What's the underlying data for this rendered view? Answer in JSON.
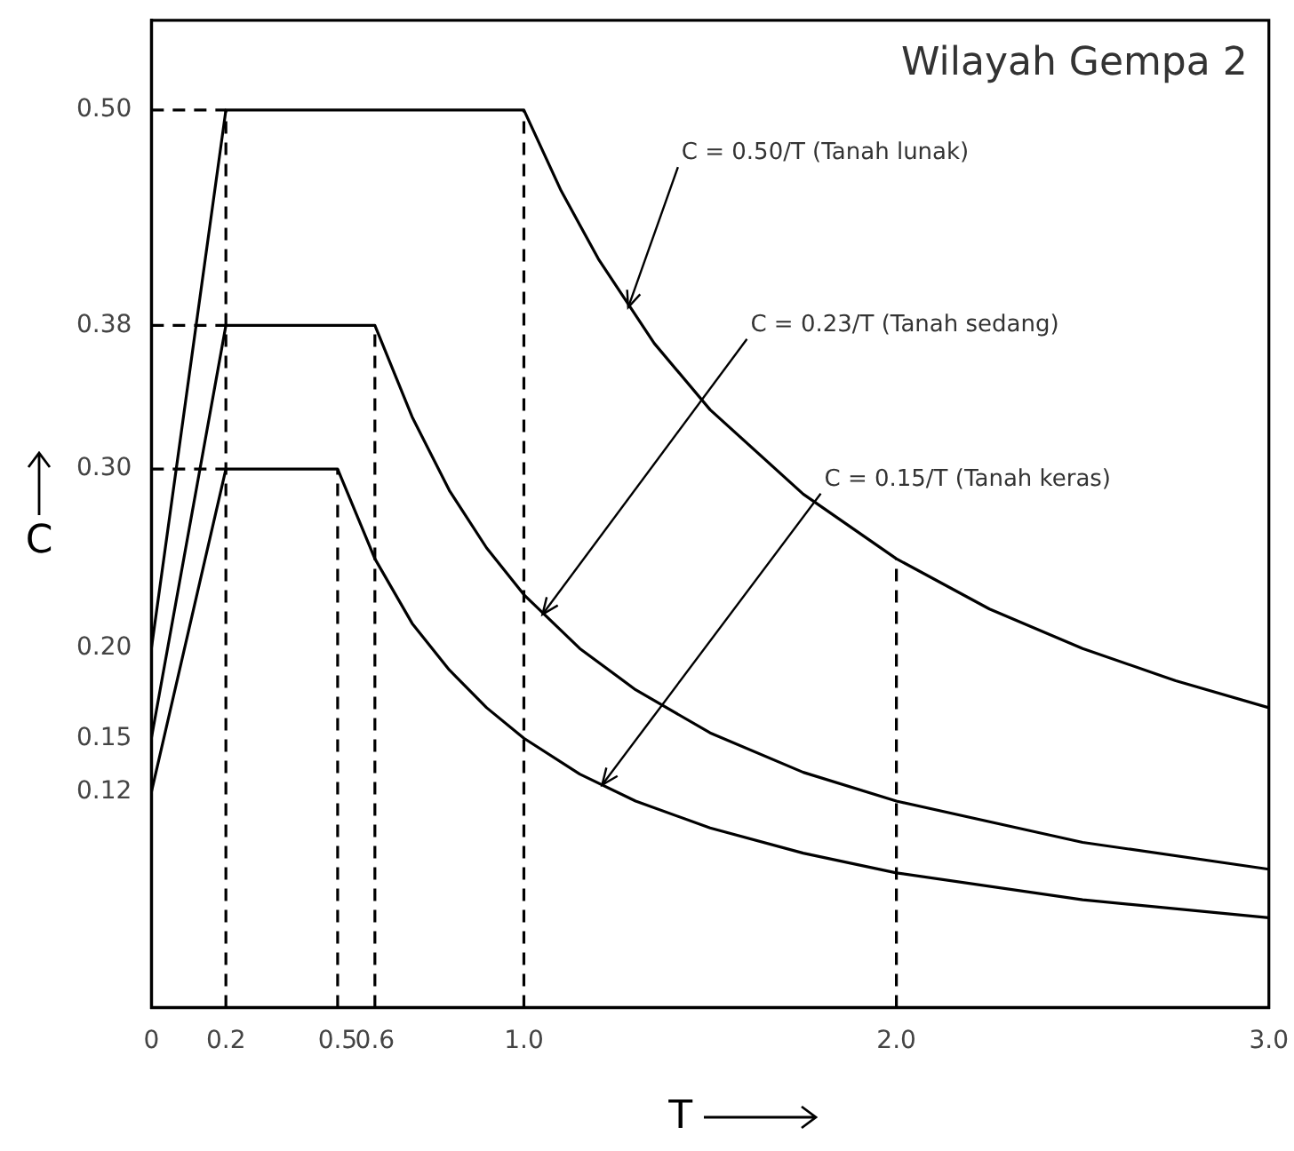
{
  "chart_data": {
    "type": "line",
    "xlabel": "T",
    "ylabel": "C",
    "xlim": [
      0,
      3
    ],
    "xticks": [
      0,
      0.2,
      0.5,
      0.6,
      {
        "value": 1,
        "label": "1.0"
      },
      {
        "value": 2,
        "label": "2.0"
      },
      {
        "value": 3,
        "label": "3.0"
      }
    ],
    "ylim": [
      0,
      0.55
    ],
    "yticks": [
      {
        "value": 0.12,
        "label": "0.12"
      },
      {
        "value": 0.15,
        "label": "0.15"
      },
      {
        "value": 0.2,
        "label": "0.20"
      },
      {
        "value": 0.3,
        "label": "0.30"
      },
      {
        "value": 0.38,
        "label": "0.38"
      },
      {
        "value": 0.5,
        "label": "0.50"
      }
    ],
    "grid": false,
    "legend": false,
    "marker": "none",
    "line_style": "solid",
    "series": [
      {
        "color": "#000000",
        "x": [
          0,
          0.2,
          1.0,
          1.1,
          1.2,
          1.35,
          1.5,
          1.75,
          2.0,
          2.25,
          2.5,
          2.75,
          3.0
        ],
        "values": [
          0.2,
          0.5,
          0.5,
          0.455,
          0.417,
          0.37,
          0.333,
          0.286,
          0.25,
          0.222,
          0.2,
          0.182,
          0.167
        ]
      },
      {
        "color": "#000000",
        "x": [
          0,
          0.2,
          0.6,
          0.7,
          0.8,
          0.9,
          1.0,
          1.15,
          1.3,
          1.5,
          1.75,
          2.0,
          2.5,
          3.0
        ],
        "values": [
          0.15,
          0.38,
          0.38,
          0.329,
          0.288,
          0.256,
          0.23,
          0.2,
          0.177,
          0.153,
          0.131,
          0.115,
          0.092,
          0.077
        ]
      },
      {
        "color": "#000000",
        "x": [
          0,
          0.2,
          0.5,
          0.6,
          0.7,
          0.8,
          0.9,
          1.0,
          1.15,
          1.3,
          1.5,
          1.75,
          2.0,
          2.5,
          3.0
        ],
        "values": [
          0.12,
          0.3,
          0.3,
          0.25,
          0.214,
          0.188,
          0.167,
          0.15,
          0.13,
          0.115,
          0.1,
          0.086,
          0.075,
          0.06,
          0.05
        ]
      },
      {
        "color": "#000000",
        "line_style": "dashed",
        "x": [
          0.2,
          0.2
        ],
        "values": [
          0,
          0.5
        ]
      },
      {
        "color": "#000000",
        "line_style": "dashed",
        "x": [
          0.5,
          0.5
        ],
        "values": [
          0,
          0.3
        ]
      },
      {
        "color": "#000000",
        "line_style": "dashed",
        "x": [
          0.6,
          0.6
        ],
        "values": [
          0,
          0.38
        ]
      },
      {
        "color": "#000000",
        "line_style": "dashed",
        "x": [
          1.0,
          1.0
        ],
        "values": [
          0,
          0.5
        ]
      },
      {
        "color": "#000000",
        "line_style": "dashed",
        "x": [
          2.0,
          2.0
        ],
        "values": [
          0,
          0.25
        ]
      },
      {
        "color": "#000000",
        "line_style": "dashed",
        "x": [
          0,
          0.2
        ],
        "values": [
          0.5,
          0.5
        ]
      },
      {
        "color": "#000000",
        "line_style": "dashed",
        "x": [
          0,
          0.2
        ],
        "values": [
          0.38,
          0.38
        ]
      },
      {
        "color": "#000000",
        "line_style": "dashed",
        "x": [
          0,
          0.2
        ],
        "values": [
          0.3,
          0.3
        ]
      }
    ],
    "annotations": [
      "Wilayah Gempa 2",
      {
        "text": "C = 0.50/T (Tanah lunak)",
        "x": 1.28,
        "y": 0.39
      },
      {
        "text": "C = 0.23/T (Tanah sedang)",
        "x": 1.05,
        "y": 0.219
      },
      {
        "text": "C = 0.15/T (Tanah keras)",
        "x": 1.21,
        "y": 0.124
      }
    ]
  }
}
